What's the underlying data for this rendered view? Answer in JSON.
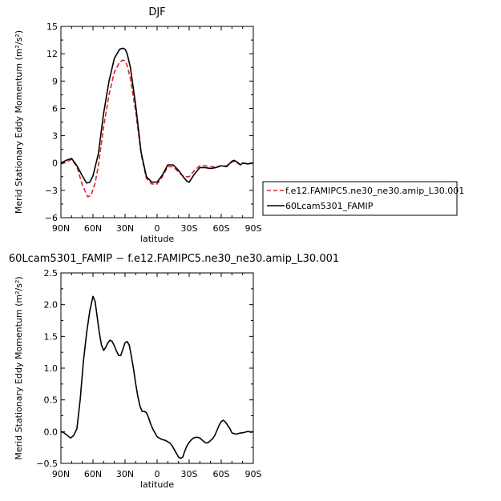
{
  "chart_data": [
    {
      "type": "line",
      "title": "DJF",
      "xlabel": "latitude",
      "ylabel": "Merid Stationary Eddy Momentum (m²/s²)",
      "xlim": [
        90,
        -90
      ],
      "ylim": [
        -6,
        15
      ],
      "x_ticks": [
        90,
        60,
        30,
        0,
        -30,
        -60,
        -90
      ],
      "x_tick_labels": [
        "90N",
        "60N",
        "30N",
        "0",
        "30S",
        "60S",
        "90S"
      ],
      "y_ticks": [
        -6,
        -3,
        0,
        3,
        6,
        9,
        12,
        15
      ],
      "y_tick_labels": [
        "−6",
        "−3",
        "0",
        "3",
        "6",
        "9",
        "12",
        "15"
      ],
      "legend_position": "right",
      "series": [
        {
          "name": "f.e12.FAMIPC5.ne30_ne30.amip_L30.001",
          "color": "#d9262b",
          "dash": "dashed",
          "x": [
            90,
            85,
            80,
            75,
            70,
            65,
            62,
            58,
            55,
            50,
            45,
            40,
            35,
            32,
            30,
            28,
            25,
            20,
            15,
            10,
            5,
            0,
            -5,
            -10,
            -15,
            -20,
            -25,
            -30,
            -35,
            -40,
            -45,
            -50,
            -55,
            -60,
            -65,
            -70,
            -72,
            -75,
            -78,
            -80,
            -85,
            -90
          ],
          "y": [
            -0.1,
            0.1,
            0.4,
            -0.4,
            -2.4,
            -3.7,
            -3.6,
            -2.2,
            -0.3,
            4.0,
            7.5,
            10.0,
            11.1,
            11.3,
            11.2,
            10.7,
            9.3,
            5.6,
            1.0,
            -1.7,
            -2.3,
            -2.3,
            -1.5,
            -0.4,
            -0.4,
            -1.0,
            -1.5,
            -1.5,
            -0.8,
            -0.3,
            -0.3,
            -0.4,
            -0.4,
            -0.3,
            -0.3,
            0.1,
            0.2,
            0.0,
            -0.2,
            0.0,
            -0.1,
            0.0
          ]
        },
        {
          "name": "60Lcam5301_FAMIP",
          "color": "#000000",
          "dash": "solid",
          "x": [
            90,
            85,
            80,
            75,
            70,
            66,
            63,
            60,
            55,
            50,
            45,
            40,
            35,
            32,
            30,
            28,
            25,
            20,
            15,
            10,
            5,
            0,
            -5,
            -10,
            -15,
            -20,
            -25,
            -28,
            -30,
            -35,
            -40,
            -45,
            -50,
            -55,
            -60,
            -65,
            -70,
            -72,
            -75,
            -78,
            -80,
            -85,
            -90
          ],
          "y": [
            0.0,
            0.3,
            0.5,
            -0.3,
            -1.4,
            -2.2,
            -2.1,
            -1.4,
            1.0,
            5.5,
            9.0,
            11.5,
            12.5,
            12.6,
            12.5,
            12.0,
            10.5,
            6.3,
            1.2,
            -1.5,
            -2.1,
            -2.1,
            -1.3,
            -0.2,
            -0.2,
            -0.8,
            -1.6,
            -2.0,
            -2.1,
            -1.2,
            -0.5,
            -0.5,
            -0.6,
            -0.5,
            -0.3,
            -0.4,
            0.2,
            0.3,
            0.1,
            -0.2,
            0.0,
            -0.1,
            0.0
          ]
        }
      ]
    },
    {
      "type": "line",
      "title": "60Lcam5301_FAMIP − f.e12.FAMIPC5.ne30_ne30.amip_L30.001",
      "xlabel": "latitude",
      "ylabel": "Merid Stationary Eddy Momentum (m²/s²)",
      "xlim": [
        90,
        -90
      ],
      "ylim": [
        -0.5,
        2.5
      ],
      "x_ticks": [
        90,
        60,
        30,
        0,
        -30,
        -60,
        -90
      ],
      "x_tick_labels": [
        "90N",
        "60N",
        "30N",
        "0",
        "30S",
        "60S",
        "90S"
      ],
      "y_ticks": [
        -0.5,
        0.0,
        0.5,
        1.0,
        1.5,
        2.0,
        2.5
      ],
      "y_tick_labels": [
        "−0.5",
        "0.0",
        "0.5",
        "1.0",
        "1.5",
        "2.0",
        "2.5"
      ],
      "series": [
        {
          "color": "#000000",
          "dash": "solid",
          "x": [
            90,
            87,
            84,
            81,
            78,
            75,
            72,
            69,
            66,
            63,
            60,
            58,
            56,
            54,
            52,
            50,
            48,
            46,
            44,
            42,
            40,
            38,
            36,
            34,
            32,
            30,
            28,
            26,
            24,
            22,
            20,
            18,
            16,
            14,
            12,
            10,
            8,
            6,
            4,
            2,
            0,
            -2,
            -4,
            -6,
            -8,
            -10,
            -12,
            -14,
            -16,
            -18,
            -20,
            -22,
            -24,
            -26,
            -28,
            -30,
            -32,
            -34,
            -36,
            -38,
            -40,
            -42,
            -44,
            -46,
            -48,
            -50,
            -52,
            -54,
            -56,
            -58,
            -60,
            -62,
            -64,
            -66,
            -68,
            -70,
            -72,
            -74,
            -76,
            -78,
            -80,
            -82,
            -84,
            -86,
            -88,
            -90
          ],
          "y": [
            0.0,
            -0.02,
            -0.06,
            -0.1,
            -0.06,
            0.05,
            0.5,
            1.1,
            1.55,
            1.9,
            2.13,
            2.05,
            1.8,
            1.55,
            1.36,
            1.28,
            1.33,
            1.4,
            1.44,
            1.42,
            1.35,
            1.27,
            1.2,
            1.2,
            1.3,
            1.4,
            1.42,
            1.36,
            1.18,
            0.98,
            0.75,
            0.55,
            0.4,
            0.32,
            0.32,
            0.3,
            0.22,
            0.12,
            0.04,
            -0.02,
            -0.08,
            -0.1,
            -0.12,
            -0.13,
            -0.14,
            -0.16,
            -0.18,
            -0.22,
            -0.28,
            -0.34,
            -0.4,
            -0.42,
            -0.4,
            -0.3,
            -0.22,
            -0.17,
            -0.13,
            -0.1,
            -0.09,
            -0.09,
            -0.1,
            -0.13,
            -0.16,
            -0.18,
            -0.17,
            -0.14,
            -0.11,
            -0.06,
            0.02,
            0.1,
            0.16,
            0.18,
            0.15,
            0.1,
            0.05,
            -0.02,
            -0.03,
            -0.04,
            -0.03,
            -0.02,
            -0.02,
            -0.01,
            0.0,
            0.0,
            -0.01,
            0.0
          ]
        }
      ]
    }
  ]
}
